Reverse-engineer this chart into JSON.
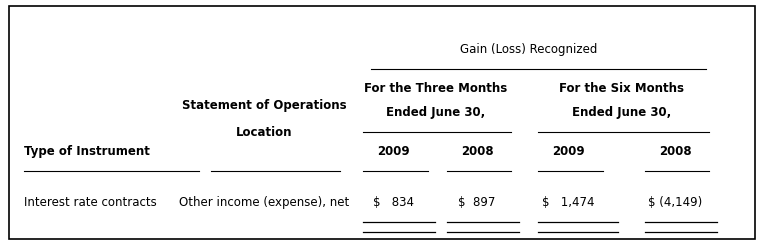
{
  "title": "Gain (Loss) Recognized",
  "col_group1_header1": "For the Three Months",
  "col_group1_header2": "Ended June 30,",
  "col_group2_header1": "For the Six Months",
  "col_group2_header2": "Ended June 30,",
  "col_headers": [
    "2009",
    "2008",
    "2009",
    "2008"
  ],
  "row_header1": "Type of Instrument",
  "row_header2_line1": "Statement of Operations",
  "row_header2_line2": "Location",
  "row_label": "Interest rate contracts",
  "row_location": "Other income (expense), net",
  "values": [
    "$   834",
    "$  897",
    "$   1,474",
    "$ (4,149)"
  ],
  "bg_color": "#ffffff",
  "border_color": "#000000",
  "text_color": "#000000",
  "font_size": 8.5
}
